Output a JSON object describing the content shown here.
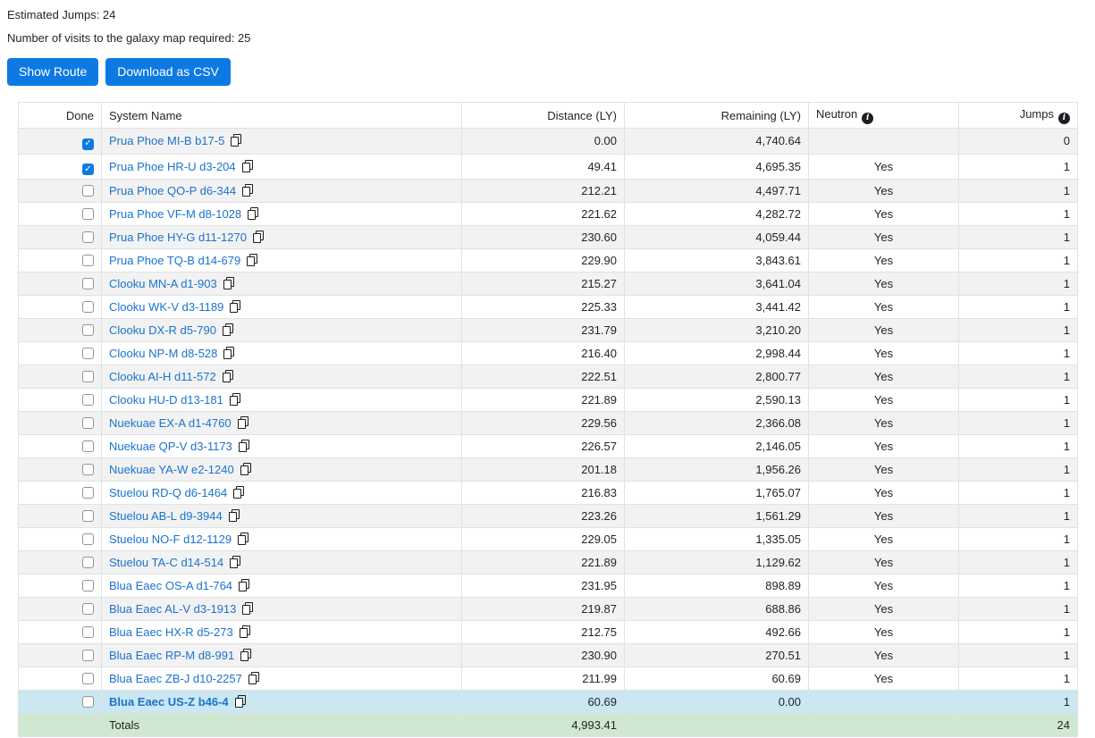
{
  "summary": {
    "estimated_jumps": "Estimated Jumps: 24",
    "galaxy_map_visits": "Number of visits to the galaxy map required: 25"
  },
  "buttons": {
    "show_route": "Show Route",
    "download_csv": "Download as CSV"
  },
  "table": {
    "columns": {
      "done": "Done",
      "system": "System Name",
      "distance": "Distance (LY)",
      "remaining": "Remaining (LY)",
      "neutron": "Neutron",
      "jumps": "Jumps"
    },
    "rows": [
      {
        "done": true,
        "system": "Prua Phoe MI-B b17-5",
        "distance": "0.00",
        "remaining": "4,740.64",
        "neutron": "",
        "jumps": "0",
        "highlighted": false
      },
      {
        "done": true,
        "system": "Prua Phoe HR-U d3-204",
        "distance": "49.41",
        "remaining": "4,695.35",
        "neutron": "Yes",
        "jumps": "1",
        "highlighted": false
      },
      {
        "done": false,
        "system": "Prua Phoe QO-P d6-344",
        "distance": "212.21",
        "remaining": "4,497.71",
        "neutron": "Yes",
        "jumps": "1",
        "highlighted": false
      },
      {
        "done": false,
        "system": "Prua Phoe VF-M d8-1028",
        "distance": "221.62",
        "remaining": "4,282.72",
        "neutron": "Yes",
        "jumps": "1",
        "highlighted": false
      },
      {
        "done": false,
        "system": "Prua Phoe HY-G d11-1270",
        "distance": "230.60",
        "remaining": "4,059.44",
        "neutron": "Yes",
        "jumps": "1",
        "highlighted": false
      },
      {
        "done": false,
        "system": "Prua Phoe TQ-B d14-679",
        "distance": "229.90",
        "remaining": "3,843.61",
        "neutron": "Yes",
        "jumps": "1",
        "highlighted": false
      },
      {
        "done": false,
        "system": "Clooku MN-A d1-903",
        "distance": "215.27",
        "remaining": "3,641.04",
        "neutron": "Yes",
        "jumps": "1",
        "highlighted": false
      },
      {
        "done": false,
        "system": "Clooku WK-V d3-1189",
        "distance": "225.33",
        "remaining": "3,441.42",
        "neutron": "Yes",
        "jumps": "1",
        "highlighted": false
      },
      {
        "done": false,
        "system": "Clooku DX-R d5-790",
        "distance": "231.79",
        "remaining": "3,210.20",
        "neutron": "Yes",
        "jumps": "1",
        "highlighted": false
      },
      {
        "done": false,
        "system": "Clooku NP-M d8-528",
        "distance": "216.40",
        "remaining": "2,998.44",
        "neutron": "Yes",
        "jumps": "1",
        "highlighted": false
      },
      {
        "done": false,
        "system": "Clooku AI-H d11-572",
        "distance": "222.51",
        "remaining": "2,800.77",
        "neutron": "Yes",
        "jumps": "1",
        "highlighted": false
      },
      {
        "done": false,
        "system": "Clooku HU-D d13-181",
        "distance": "221.89",
        "remaining": "2,590.13",
        "neutron": "Yes",
        "jumps": "1",
        "highlighted": false
      },
      {
        "done": false,
        "system": "Nuekuae EX-A d1-4760",
        "distance": "229.56",
        "remaining": "2,366.08",
        "neutron": "Yes",
        "jumps": "1",
        "highlighted": false
      },
      {
        "done": false,
        "system": "Nuekuae QP-V d3-1173",
        "distance": "226.57",
        "remaining": "2,146.05",
        "neutron": "Yes",
        "jumps": "1",
        "highlighted": false
      },
      {
        "done": false,
        "system": "Nuekuae YA-W e2-1240",
        "distance": "201.18",
        "remaining": "1,956.26",
        "neutron": "Yes",
        "jumps": "1",
        "highlighted": false
      },
      {
        "done": false,
        "system": "Stuelou RD-Q d6-1464",
        "distance": "216.83",
        "remaining": "1,765.07",
        "neutron": "Yes",
        "jumps": "1",
        "highlighted": false
      },
      {
        "done": false,
        "system": "Stuelou AB-L d9-3944",
        "distance": "223.26",
        "remaining": "1,561.29",
        "neutron": "Yes",
        "jumps": "1",
        "highlighted": false
      },
      {
        "done": false,
        "system": "Stuelou NO-F d12-1129",
        "distance": "229.05",
        "remaining": "1,335.05",
        "neutron": "Yes",
        "jumps": "1",
        "highlighted": false
      },
      {
        "done": false,
        "system": "Stuelou TA-C d14-514",
        "distance": "221.89",
        "remaining": "1,129.62",
        "neutron": "Yes",
        "jumps": "1",
        "highlighted": false
      },
      {
        "done": false,
        "system": "Blua Eaec OS-A d1-764",
        "distance": "231.95",
        "remaining": "898.89",
        "neutron": "Yes",
        "jumps": "1",
        "highlighted": false
      },
      {
        "done": false,
        "system": "Blua Eaec AL-V d3-1913",
        "distance": "219.87",
        "remaining": "688.86",
        "neutron": "Yes",
        "jumps": "1",
        "highlighted": false
      },
      {
        "done": false,
        "system": "Blua Eaec HX-R d5-273",
        "distance": "212.75",
        "remaining": "492.66",
        "neutron": "Yes",
        "jumps": "1",
        "highlighted": false
      },
      {
        "done": false,
        "system": "Blua Eaec RP-M d8-991",
        "distance": "230.90",
        "remaining": "270.51",
        "neutron": "Yes",
        "jumps": "1",
        "highlighted": false
      },
      {
        "done": false,
        "system": "Blua Eaec ZB-J d10-2257",
        "distance": "211.99",
        "remaining": "60.69",
        "neutron": "Yes",
        "jumps": "1",
        "highlighted": false
      },
      {
        "done": false,
        "system": "Blua Eaec US-Z b46-4",
        "distance": "60.69",
        "remaining": "0.00",
        "neutron": "",
        "jumps": "1",
        "highlighted": true
      }
    ],
    "totals": {
      "label": "Totals",
      "distance": "4,993.41",
      "remaining": "",
      "neutron": "",
      "jumps": "24"
    }
  },
  "icons": {
    "copy": "copy-icon",
    "info": "info-icon",
    "checkmark": "✓"
  },
  "colors": {
    "accent_blue": "#0d7ae4",
    "link_blue": "#1a73cf",
    "row_stripe": "#f2f2f2",
    "table_border": "#dee2e6",
    "highlight_row_blue": "#cbe7f1",
    "totals_row_green": "#d0e8d2",
    "text": "#212529"
  }
}
